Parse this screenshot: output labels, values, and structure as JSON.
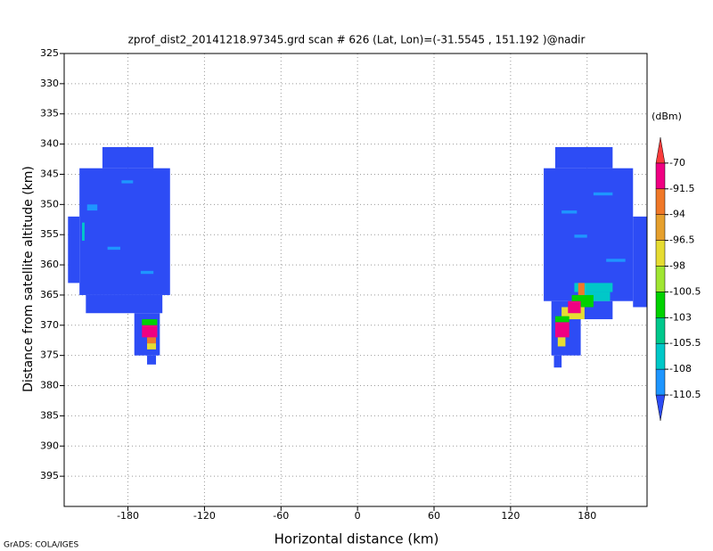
{
  "chart_data": {
    "type": "heatmap",
    "title": "zprof_dist2_20141218.97345.grd   scan # 626   (Lat, Lon)=(-31.5545 , 151.192 )@nadir",
    "x_label": "Horizontal distance (km)",
    "y_label": "Distance from satellite altitude (km)",
    "xlim": [
      -230,
      227
    ],
    "ylim": [
      400,
      325
    ],
    "xticks": [
      -180,
      -120,
      -60,
      0,
      60,
      120,
      180
    ],
    "yticks": [
      325,
      330,
      335,
      340,
      345,
      350,
      355,
      360,
      365,
      370,
      375,
      380,
      385,
      390,
      395
    ],
    "grid": true,
    "colorbar": {
      "label": "(dBm)",
      "levels": [
        -110.5,
        -108,
        -105.5,
        -103,
        -100.5,
        -98,
        -96.5,
        -94,
        -91.5,
        -70
      ],
      "colors": [
        "#2d4cf5",
        "#1e96ff",
        "#00c8c8",
        "#00c88c",
        "#00d200",
        "#a0e632",
        "#e6dc32",
        "#e6a02d",
        "#f07828",
        "#f00082",
        "#fa3c3c"
      ]
    },
    "cells": [
      {
        "x": [
          -218,
          -147
        ],
        "y": [
          344,
          365
        ],
        "value": -112
      },
      {
        "x": [
          -200,
          -160
        ],
        "y": [
          340.5,
          344
        ],
        "value": -112
      },
      {
        "x": [
          -227,
          -218
        ],
        "y": [
          352,
          363
        ],
        "value": -112
      },
      {
        "x": [
          -213,
          -153
        ],
        "y": [
          365,
          368
        ],
        "value": -112
      },
      {
        "x": [
          -175,
          -155
        ],
        "y": [
          368,
          375
        ],
        "value": -112
      },
      {
        "x": [
          -165,
          -158
        ],
        "y": [
          375,
          376.5
        ],
        "value": -112
      },
      {
        "x": [
          -212,
          -204
        ],
        "y": [
          350,
          351
        ],
        "value": -109
      },
      {
        "x": [
          -196,
          -186
        ],
        "y": [
          357,
          357.5
        ],
        "value": -109
      },
      {
        "x": [
          -185,
          -176
        ],
        "y": [
          346,
          346.5
        ],
        "value": -109
      },
      {
        "x": [
          -170,
          -160
        ],
        "y": [
          361,
          361.5
        ],
        "value": -109
      },
      {
        "x": [
          -216,
          -214
        ],
        "y": [
          353,
          356
        ],
        "value": -107
      },
      {
        "x": [
          -169,
          -157
        ],
        "y": [
          369,
          370
        ],
        "value": -101
      },
      {
        "x": [
          -169,
          -157
        ],
        "y": [
          370,
          372
        ],
        "value": -85
      },
      {
        "x": [
          -165,
          -158
        ],
        "y": [
          372,
          373
        ],
        "value": -93
      },
      {
        "x": [
          -165,
          -158
        ],
        "y": [
          373,
          374
        ],
        "value": -97
      },
      {
        "x": [
          146,
          216
        ],
        "y": [
          344,
          366
        ],
        "value": -112
      },
      {
        "x": [
          155,
          200
        ],
        "y": [
          340.5,
          344
        ],
        "value": -112
      },
      {
        "x": [
          216,
          227
        ],
        "y": [
          352,
          367
        ],
        "value": -112
      },
      {
        "x": [
          152,
          200
        ],
        "y": [
          366,
          369
        ],
        "value": -112
      },
      {
        "x": [
          152,
          175
        ],
        "y": [
          369,
          375
        ],
        "value": -112
      },
      {
        "x": [
          154,
          160
        ],
        "y": [
          375,
          377
        ],
        "value": -112
      },
      {
        "x": [
          185,
          200
        ],
        "y": [
          348,
          348.5
        ],
        "value": -109
      },
      {
        "x": [
          170,
          180
        ],
        "y": [
          355,
          355.5
        ],
        "value": -109
      },
      {
        "x": [
          195,
          210
        ],
        "y": [
          359,
          359.5
        ],
        "value": -109
      },
      {
        "x": [
          160,
          172
        ],
        "y": [
          351,
          351.5
        ],
        "value": -109
      },
      {
        "x": [
          170,
          200
        ],
        "y": [
          363,
          364.5
        ],
        "value": -107
      },
      {
        "x": [
          175,
          198
        ],
        "y": [
          364.5,
          366
        ],
        "value": -106
      },
      {
        "x": [
          168,
          185
        ],
        "y": [
          365,
          367
        ],
        "value": -102
      },
      {
        "x": [
          173,
          178
        ],
        "y": [
          363,
          365
        ],
        "value": -94
      },
      {
        "x": [
          160,
          178
        ],
        "y": [
          367,
          369
        ],
        "value": -97
      },
      {
        "x": [
          165,
          175
        ],
        "y": [
          366,
          368
        ],
        "value": -85
      },
      {
        "x": [
          155,
          166
        ],
        "y": [
          368.5,
          369.5
        ],
        "value": -101
      },
      {
        "x": [
          155,
          166
        ],
        "y": [
          369.5,
          372
        ],
        "value": -85
      },
      {
        "x": [
          157,
          163
        ],
        "y": [
          372,
          373.5
        ],
        "value": -97
      }
    ]
  }
}
